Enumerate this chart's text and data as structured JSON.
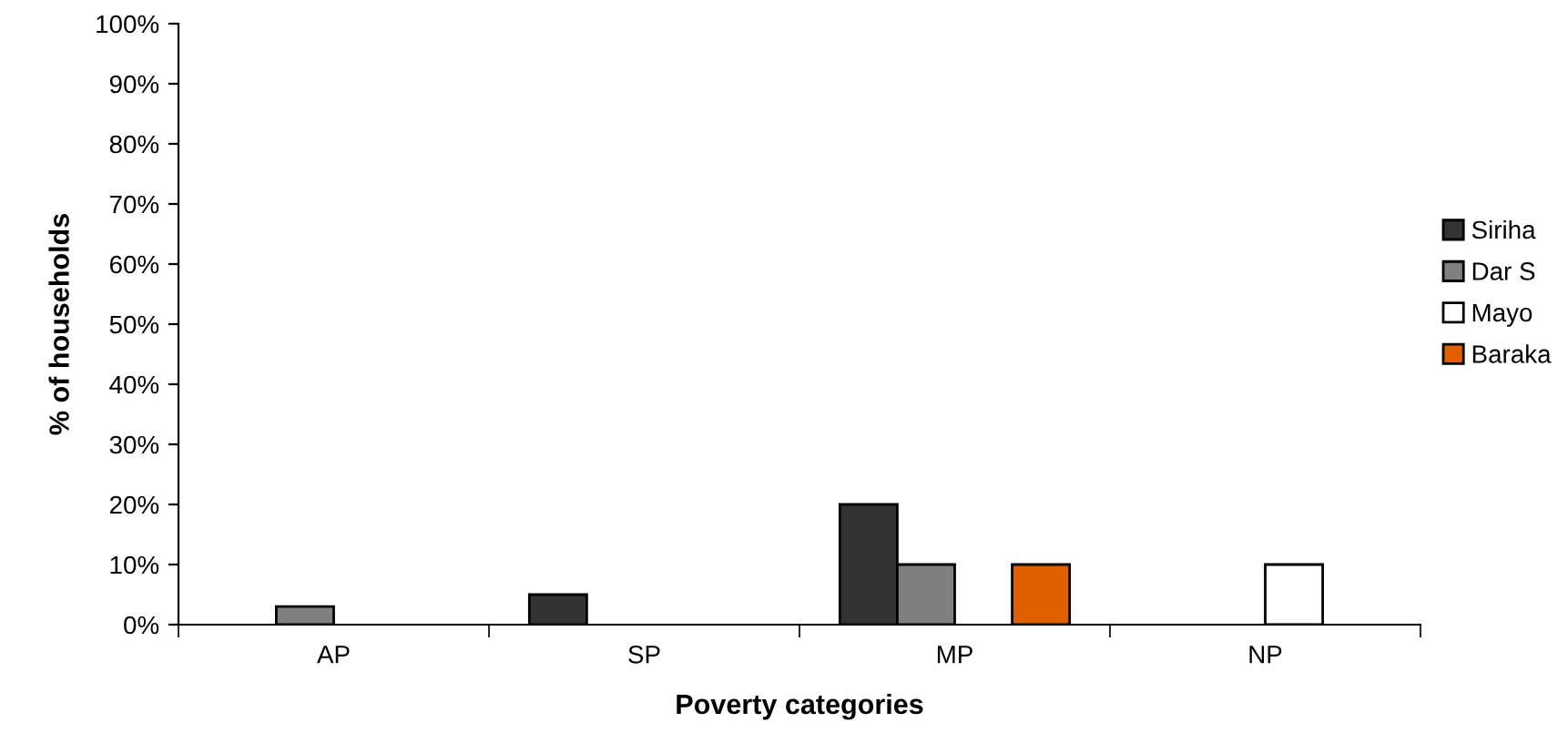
{
  "chart_data": {
    "type": "bar",
    "xlabel": "Poverty categories",
    "ylabel": "% of households",
    "categories": [
      "AP",
      "SP",
      "MP",
      "NP"
    ],
    "series": [
      {
        "name": "Siriha",
        "color": "#333333",
        "values": [
          null,
          5,
          20,
          null
        ]
      },
      {
        "name": "Dar S",
        "color": "#7f7f7f",
        "values": [
          3,
          null,
          10,
          null
        ]
      },
      {
        "name": "Mayo",
        "color": "#ffffff",
        "values": [
          null,
          null,
          null,
          10
        ]
      },
      {
        "name": "Baraka",
        "color": "#e06000",
        "values": [
          null,
          null,
          10,
          null
        ]
      }
    ],
    "ylim": [
      0,
      100
    ],
    "yticks": [
      {
        "value": 0,
        "label": "0%"
      },
      {
        "value": 10,
        "label": "10%"
      },
      {
        "value": 20,
        "label": "20%"
      },
      {
        "value": 30,
        "label": "30%"
      },
      {
        "value": 40,
        "label": "40%"
      },
      {
        "value": 50,
        "label": "50%"
      },
      {
        "value": 60,
        "label": "60%"
      },
      {
        "value": 70,
        "label": "70%"
      },
      {
        "value": 80,
        "label": "80%"
      },
      {
        "value": 90,
        "label": "90%"
      },
      {
        "value": 100,
        "label": "100%"
      }
    ],
    "grid": false,
    "legend": "right"
  }
}
